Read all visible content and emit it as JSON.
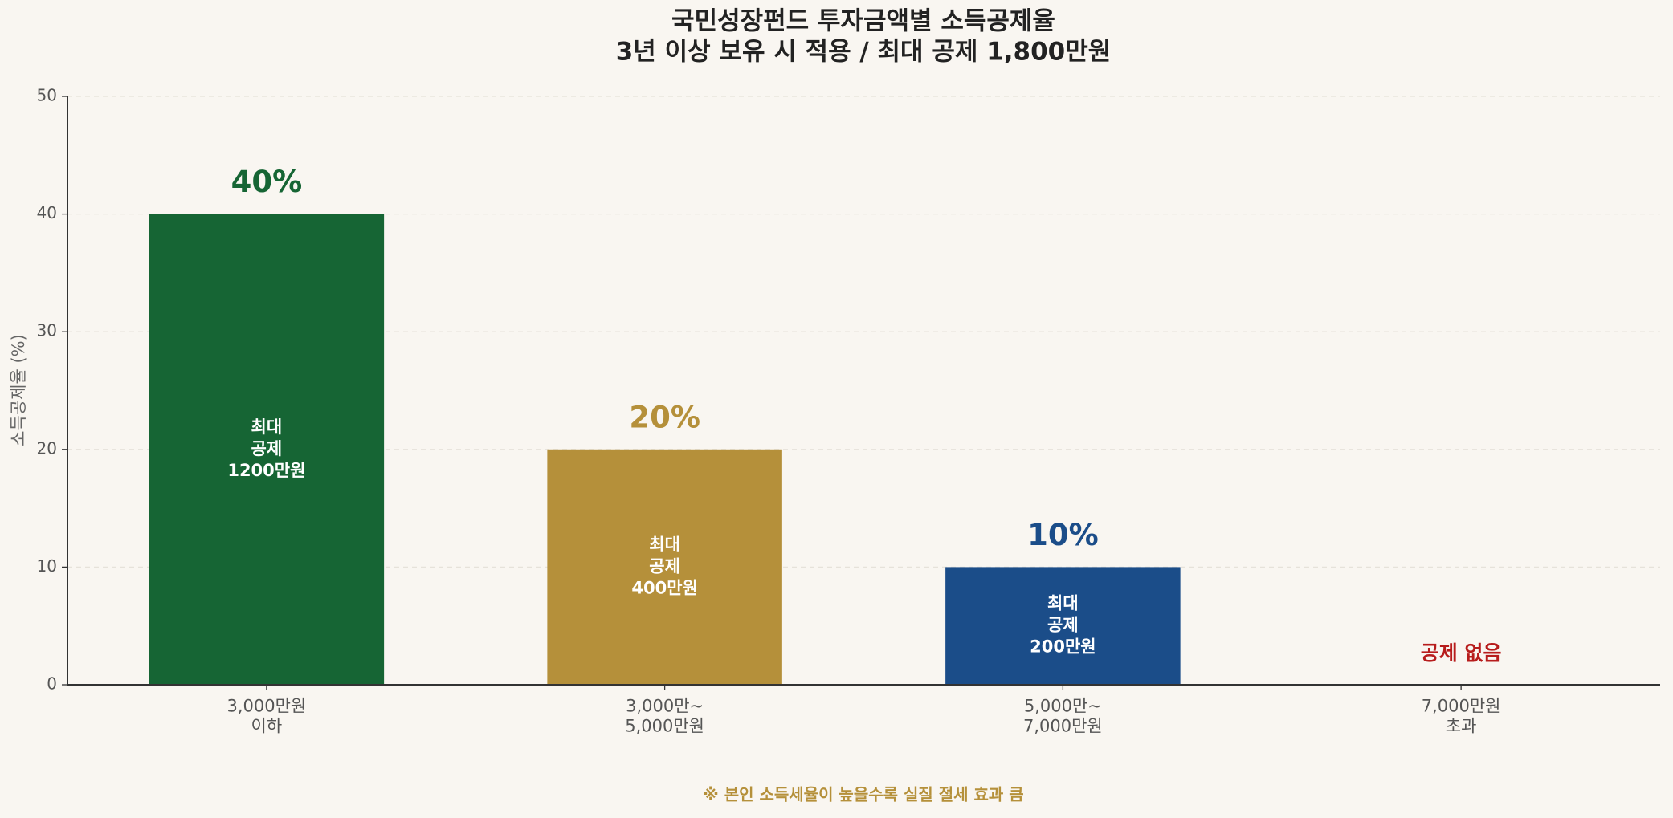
{
  "chart_data": {
    "type": "bar",
    "title": "국민성장펀드 투자금액별 소득공제율",
    "subtitle": "3년 이상 보유 시 적용 / 최대 공제 1,800만원",
    "y_label": "소득공제율 (%)",
    "categories": [
      "3,000만원\n이하",
      "3,000만~\n5,000만원",
      "5,000만~\n7,000만원",
      "7,000만원\n초과"
    ],
    "values": [
      40,
      20,
      10,
      0
    ],
    "value_labels": [
      "40%",
      "20%",
      "10%",
      "공제 없음"
    ],
    "inner_labels": [
      "최대\n공제\n1200만원",
      "최대\n공제\n400만원",
      "최대\n공제\n200만원",
      null
    ],
    "colors": [
      "#166534",
      "#b5903a",
      "#1b4d89",
      "#b71c1c"
    ],
    "ylim": [
      0,
      50
    ],
    "yticks": [
      0,
      10,
      20,
      30,
      40,
      50
    ],
    "grid": true,
    "note": "※ 본인 소득세율이 높을수록 실질 절세 효과 큼"
  }
}
